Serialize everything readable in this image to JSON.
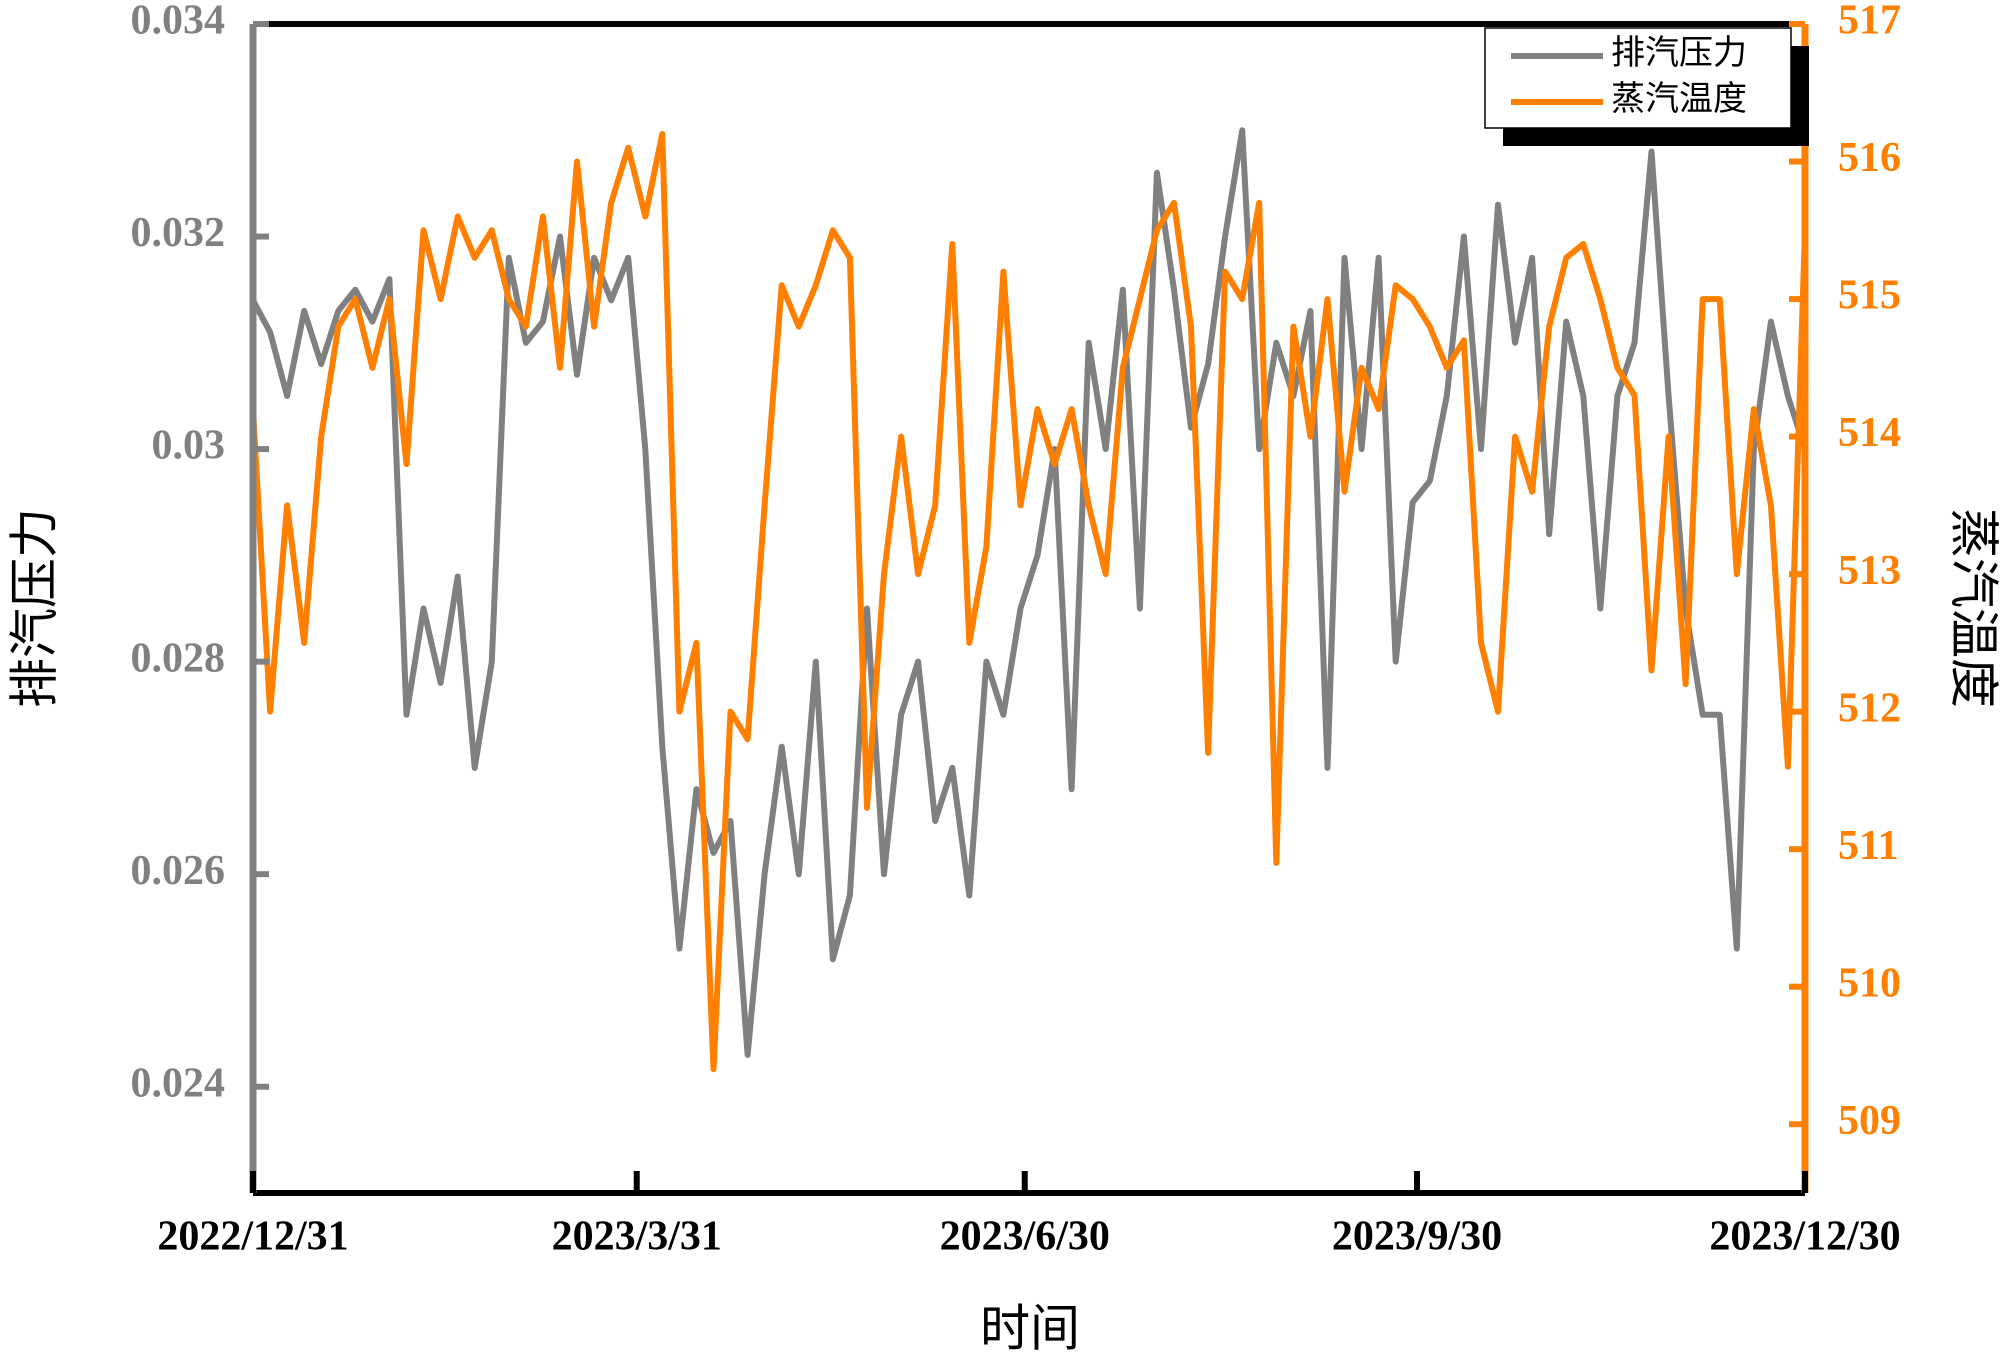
{
  "chart_data": {
    "type": "line",
    "xlabel": "时间",
    "ylabel": "排汽压力",
    "y2label": "蒸汽温度",
    "legend": "upper right",
    "xlim": [
      "2022/12/31",
      "2023/12/30"
    ],
    "xticks": [
      "2022/12/31",
      "2023/3/31",
      "2023/6/30",
      "2023/9/30",
      "2023/12/30"
    ],
    "ylim": [
      0.023,
      0.034
    ],
    "yticks": [
      0.024,
      0.026,
      0.028,
      0.03,
      0.032,
      0.034
    ],
    "y2lim": [
      508.5,
      517
    ],
    "y2ticks": [
      509,
      510,
      511,
      512,
      513,
      514,
      515,
      516,
      517
    ],
    "x": [
      "2022/12/31",
      "2023/1/4",
      "2023/1/8",
      "2023/1/12",
      "2023/1/16",
      "2023/1/20",
      "2023/1/24",
      "2023/1/28",
      "2023/2/1",
      "2023/2/5",
      "2023/2/9",
      "2023/2/13",
      "2023/2/17",
      "2023/2/21",
      "2023/2/25",
      "2023/3/1",
      "2023/3/5",
      "2023/3/9",
      "2023/3/13",
      "2023/3/17",
      "2023/3/21",
      "2023/3/25",
      "2023/3/29",
      "2023/4/2",
      "2023/4/6",
      "2023/4/10",
      "2023/4/14",
      "2023/4/18",
      "2023/4/22",
      "2023/4/26",
      "2023/4/30",
      "2023/5/4",
      "2023/5/8",
      "2023/5/12",
      "2023/5/16",
      "2023/5/20",
      "2023/5/24",
      "2023/5/28",
      "2023/6/1",
      "2023/6/5",
      "2023/6/9",
      "2023/6/13",
      "2023/6/17",
      "2023/6/21",
      "2023/6/25",
      "2023/6/29",
      "2023/7/3",
      "2023/7/7",
      "2023/7/11",
      "2023/7/15",
      "2023/7/19",
      "2023/7/23",
      "2023/7/27",
      "2023/7/31",
      "2023/8/4",
      "2023/8/8",
      "2023/8/12",
      "2023/8/16",
      "2023/8/20",
      "2023/8/24",
      "2023/8/28",
      "2023/9/1",
      "2023/9/5",
      "2023/9/9",
      "2023/9/13",
      "2023/9/17",
      "2023/9/21",
      "2023/9/25",
      "2023/9/29",
      "2023/10/3",
      "2023/10/7",
      "2023/10/11",
      "2023/10/15",
      "2023/10/19",
      "2023/10/23",
      "2023/10/27",
      "2023/10/31",
      "2023/11/4",
      "2023/11/8",
      "2023/11/12",
      "2023/11/16",
      "2023/11/20",
      "2023/11/24",
      "2023/11/28",
      "2023/12/2",
      "2023/12/6",
      "2023/12/10",
      "2023/12/14",
      "2023/12/18",
      "2023/12/22",
      "2023/12/26",
      "2023/12/30"
    ],
    "series": [
      {
        "name": "排汽压力",
        "color": "#808080",
        "axis": "y",
        "values": [
          0.0314,
          0.0311,
          0.0305,
          0.0313,
          0.0308,
          0.0313,
          0.0315,
          0.0312,
          0.0316,
          0.0275,
          0.0285,
          0.0278,
          0.0288,
          0.027,
          0.028,
          0.0318,
          0.031,
          0.0312,
          0.032,
          0.0307,
          0.0318,
          0.0314,
          0.0318,
          0.03,
          0.0272,
          0.0253,
          0.0268,
          0.0262,
          0.0265,
          0.0243,
          0.026,
          0.0272,
          0.026,
          0.028,
          0.0252,
          0.0258,
          0.0285,
          0.026,
          0.0275,
          0.028,
          0.0265,
          0.027,
          0.0258,
          0.028,
          0.0275,
          0.0285,
          0.029,
          0.03,
          0.0268,
          0.031,
          0.03,
          0.0315,
          0.0285,
          0.0326,
          0.0315,
          0.0302,
          0.0308,
          0.032,
          0.033,
          0.03,
          0.031,
          0.0305,
          0.0313,
          0.027,
          0.0318,
          0.03,
          0.0318,
          0.028,
          0.0295,
          0.0297,
          0.0305,
          0.032,
          0.03,
          0.0323,
          0.031,
          0.0318,
          0.0292,
          0.0312,
          0.0305,
          0.0285,
          0.0305,
          0.031,
          0.0328,
          0.0305,
          0.0285,
          0.0275,
          0.0275,
          0.0253,
          0.03,
          0.0312,
          0.0305,
          0.03
        ]
      },
      {
        "name": "蒸汽温度",
        "color": "#ff7f00",
        "axis": "y2",
        "values": [
          514.2,
          512.0,
          513.5,
          512.5,
          514.0,
          514.8,
          515.0,
          514.5,
          515.0,
          513.8,
          515.5,
          515.0,
          515.6,
          515.3,
          515.5,
          515.0,
          514.8,
          515.6,
          514.5,
          516.0,
          514.8,
          515.7,
          516.1,
          515.6,
          516.2,
          512.0,
          512.5,
          509.4,
          512.0,
          511.8,
          513.5,
          515.1,
          514.8,
          515.1,
          515.5,
          515.3,
          511.3,
          513.0,
          514.0,
          513.0,
          513.5,
          515.4,
          512.5,
          513.2,
          515.2,
          513.5,
          514.2,
          513.8,
          514.2,
          513.5,
          513.0,
          514.5,
          515.0,
          515.5,
          515.7,
          514.8,
          511.7,
          515.2,
          515.0,
          515.7,
          510.9,
          514.8,
          514.0,
          515.0,
          513.6,
          514.5,
          514.2,
          515.1,
          515.0,
          514.8,
          514.5,
          514.7,
          512.5,
          512.0,
          514.0,
          513.6,
          514.8,
          515.3,
          515.4,
          515.0,
          514.5,
          514.3,
          512.3,
          514.0,
          512.2,
          515.0,
          515.0,
          513.0,
          514.2,
          513.5,
          511.6,
          515.5
        ]
      }
    ]
  }
}
